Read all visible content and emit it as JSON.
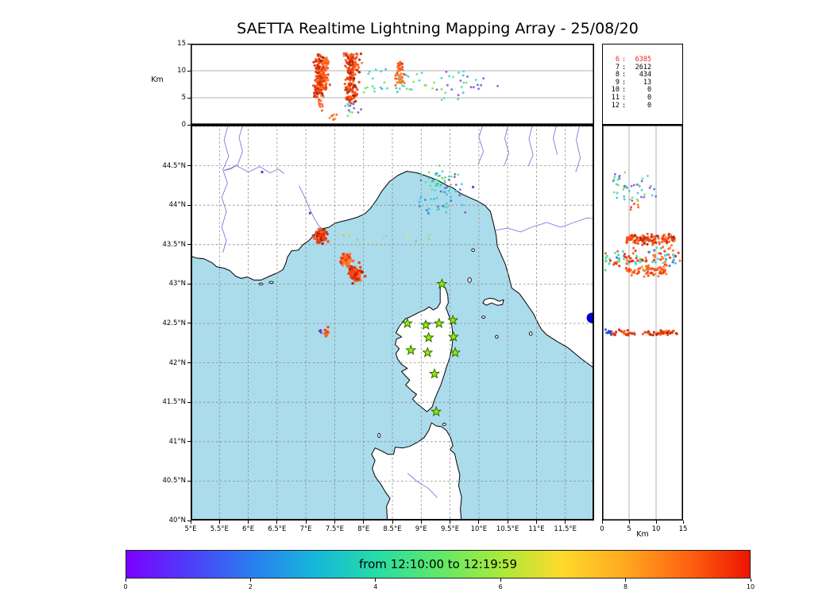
{
  "title": "SAETTA Realtime Lightning Mapping Array - 25/08/20",
  "colorbar": {
    "label": "from 12:10:00 to 12:19:59",
    "tick_labels": [
      "0",
      "2",
      "4",
      "6",
      "8",
      "10"
    ],
    "tick_values": [
      0,
      2,
      4,
      6,
      8,
      10
    ],
    "range": [
      0,
      10
    ],
    "gradient": [
      "#7c00ff",
      "#4f3df9",
      "#2b7df0",
      "#16b5db",
      "#25dca8",
      "#5fe86a",
      "#a8ea3a",
      "#ffd92b",
      "#ffa81f",
      "#ff6312",
      "#ec1500"
    ]
  },
  "axes": {
    "alt_label": "Km",
    "alt_tick_labels": [
      "0",
      "5",
      "10",
      "15"
    ],
    "alt_tick_values": [
      0,
      5,
      10,
      15
    ],
    "alt_range": [
      0,
      15
    ],
    "alt_gridlines": [
      5,
      10
    ],
    "lon_tick_labels": [
      "5°E",
      "5.5°E",
      "6°E",
      "6.5°E",
      "7°E",
      "7.5°E",
      "8°E",
      "8.5°E",
      "9°E",
      "9.5°E",
      "10°E",
      "10.5°E",
      "11°E",
      "11.5°E"
    ],
    "lon_tick_values": [
      5,
      5.5,
      6,
      6.5,
      7,
      7.5,
      8,
      8.5,
      9,
      9.5,
      10,
      10.5,
      11,
      11.5
    ],
    "lon_range": [
      5,
      12
    ],
    "lat_tick_labels": [
      "40°N",
      "40.5°N",
      "41°N",
      "41.5°N",
      "42°N",
      "42.5°N",
      "43°N",
      "43.5°N",
      "44°N",
      "44.5°N"
    ],
    "lat_tick_values": [
      40,
      40.5,
      41,
      41.5,
      42,
      42.5,
      43,
      43.5,
      44,
      44.5
    ],
    "lat_range": [
      40,
      45.02
    ],
    "grid_step": 0.5
  },
  "stats": {
    "rows": [
      {
        "label": "6",
        "value": "6385",
        "color": "#f52222"
      },
      {
        "label": "7",
        "value": "2612",
        "color": "#000000"
      },
      {
        "label": "8",
        "value": "434",
        "color": "#000000"
      },
      {
        "label": "9",
        "value": "13",
        "color": "#000000"
      },
      {
        "label": "10",
        "value": "0",
        "color": "#000000"
      },
      {
        "label": "11",
        "value": "0",
        "color": "#000000"
      },
      {
        "label": "12",
        "value": "0",
        "color": "#000000"
      }
    ]
  },
  "colors": {
    "sea": "#abdcec",
    "land": "#ffffff",
    "river": "#6b5fd6",
    "star_fill": "#8ff000",
    "star_edge": "#336600",
    "grid": "#888888"
  },
  "chart_data": {
    "type": "scatter",
    "title": "SAETTA Realtime Lightning Mapping Array - 25/08/20",
    "time_window": {
      "start": "12:10:00",
      "end": "12:19:59"
    },
    "min_stations_counts": [
      [
        "6",
        6385
      ],
      [
        "7",
        2612
      ],
      [
        "8",
        434
      ],
      [
        "9",
        13
      ],
      [
        "10",
        0
      ],
      [
        "11",
        0
      ],
      [
        "12",
        0
      ]
    ],
    "panels": {
      "top": {
        "x": "longitude_deg_E",
        "y": "altitude_km",
        "xlim": [
          5,
          12
        ],
        "ylim": [
          0,
          15
        ]
      },
      "map": {
        "x": "longitude_deg_E",
        "y": "latitude_deg_N",
        "xlim": [
          5,
          12
        ],
        "ylim": [
          40,
          45.02
        ]
      },
      "right": {
        "x": "altitude_km",
        "y": "latitude_deg_N",
        "xlim": [
          0,
          15
        ],
        "ylim": [
          40,
          45.02
        ]
      }
    },
    "stations_lonlat": [
      [
        9.36,
        43.0
      ],
      [
        8.76,
        42.5
      ],
      [
        9.08,
        42.48
      ],
      [
        9.31,
        42.5
      ],
      [
        9.55,
        42.54
      ],
      [
        9.13,
        42.32
      ],
      [
        9.56,
        42.33
      ],
      [
        8.82,
        42.16
      ],
      [
        9.11,
        42.13
      ],
      [
        9.59,
        42.13
      ],
      [
        9.23,
        41.86
      ],
      [
        9.26,
        41.38
      ]
    ],
    "palettes": {
      "fire": [
        "#ff5a1c",
        "#ff4308",
        "#f23005",
        "#ff7426",
        "#e83a10",
        "#ff6a30",
        "#fb8c2e"
      ],
      "fireCore": [
        "#ff5a1c",
        "#f23005",
        "#d92b04",
        "#b81f00",
        "#ff7426",
        "#e83a10",
        "#a01b00",
        "#ff4308"
      ],
      "cool": [
        "#2fd8c8",
        "#35c9e8",
        "#54e08c",
        "#6fe44f",
        "#40b8e0",
        "#8ee03c",
        "#23c4a8"
      ],
      "coolMix": [
        "#2fd8c8",
        "#35c9e8",
        "#54e08c",
        "#4169e1",
        "#7b50e0",
        "#6fe44f",
        "#9a3be0",
        "#40b8e0"
      ],
      "trail": [
        "#ffd027",
        "#ff9b22",
        "#3fd6d0",
        "#a8e03c",
        "#ff6a30",
        "#ffe24a"
      ],
      "mix2": [
        "#2fd8c8",
        "#ff5a1c",
        "#35c9e8",
        "#f23005",
        "#4169e1",
        "#54e08c",
        "#ff7426",
        "#d92b04"
      ],
      "blue": [
        "#2a52d8",
        "#1f3fd0",
        "#3050e8"
      ],
      "purpleBlue": [
        "#8a2be2",
        "#5b3fd8",
        "#6a2bd0"
      ]
    },
    "clusters": [
      {
        "panel": "top",
        "x": {
          "g": [
            7.23,
            0.045
          ]
        },
        "y": {
          "u": [
            5.0,
            13.0
          ]
        },
        "n": 150,
        "r": 1.6,
        "c": "fireCore"
      },
      {
        "panel": "top",
        "x": {
          "g": [
            7.33,
            0.03
          ]
        },
        "y": {
          "u": [
            6.5,
            12.5
          ]
        },
        "n": 70,
        "r": 1.6,
        "c": "fire"
      },
      {
        "panel": "top",
        "x": {
          "g": [
            7.27,
            0.05
          ]
        },
        "y": {
          "u": [
            2.4,
            5.2
          ]
        },
        "n": 12,
        "r": 1.4,
        "c": "fire"
      },
      {
        "panel": "top",
        "x": {
          "g": [
            7.78,
            0.055
          ]
        },
        "y": {
          "u": [
            4.0,
            13.2
          ]
        },
        "n": 175,
        "r": 1.6,
        "c": "fireCore"
      },
      {
        "panel": "top",
        "x": {
          "g": [
            7.8,
            0.06
          ]
        },
        "y": {
          "u": [
            1.5,
            4.0
          ]
        },
        "n": 14,
        "r": 1.4,
        "c": "coolMix"
      },
      {
        "panel": "top",
        "x": {
          "g": [
            8.63,
            0.035
          ]
        },
        "y": {
          "u": [
            7.3,
            11.6
          ]
        },
        "n": 48,
        "r": 1.6,
        "c": "fire"
      },
      {
        "panel": "top",
        "x": {
          "u": [
            7.95,
            9.25
          ]
        },
        "y": {
          "u": [
            6.0,
            10.5
          ]
        },
        "n": 36,
        "r": 1.4,
        "c": "cool"
      },
      {
        "panel": "top",
        "x": {
          "u": [
            9.25,
            10.35
          ]
        },
        "y": {
          "u": [
            4.5,
            10.0
          ]
        },
        "n": 30,
        "r": 1.4,
        "c": "coolMix"
      },
      {
        "panel": "top",
        "x": {
          "u": [
            7.38,
            7.54
          ]
        },
        "y": {
          "u": [
            0.8,
            2.2
          ]
        },
        "n": 6,
        "r": 1.5,
        "c": "fire"
      },
      {
        "panel": "map",
        "x": {
          "g": [
            7.25,
            0.05
          ]
        },
        "y": {
          "g": [
            43.6,
            0.042
          ]
        },
        "n": 100,
        "r": 1.8,
        "c": "fireCore"
      },
      {
        "panel": "map",
        "x": {
          "u": [
            7.38,
            9.35
          ]
        },
        "y": {
          "g": [
            43.57,
            0.05
          ]
        },
        "n": 20,
        "r": 1.1,
        "c": "trail"
      },
      {
        "panel": "map",
        "x": {
          "g": [
            7.71,
            0.042
          ]
        },
        "y": {
          "g": [
            43.3,
            0.038
          ]
        },
        "n": 60,
        "r": 1.8,
        "c": "fire"
      },
      {
        "panel": "map",
        "x": {
          "g": [
            7.86,
            0.05
          ]
        },
        "y": {
          "g": [
            43.13,
            0.045
          ]
        },
        "n": 85,
        "r": 1.8,
        "c": "fireCore"
      },
      {
        "panel": "map",
        "x": {
          "u": [
            8.95,
            9.78
          ]
        },
        "y": {
          "u": [
            43.88,
            44.42
          ]
        },
        "n": 50,
        "r": 1.4,
        "c": "coolMix"
      },
      {
        "panel": "map",
        "x": {
          "g": [
            9.33,
            0.12
          ]
        },
        "y": {
          "g": [
            44.27,
            0.08
          ]
        },
        "n": 28,
        "r": 1.4,
        "c": "cool"
      },
      {
        "panel": "map",
        "x": {
          "g": [
            7.36,
            0.025
          ]
        },
        "y": {
          "g": [
            42.39,
            0.02
          ]
        },
        "n": 10,
        "r": 1.7,
        "c": "fire"
      },
      {
        "panel": "map",
        "x": {
          "g": [
            7.245,
            0.012
          ]
        },
        "y": {
          "g": [
            42.405,
            0.012
          ]
        },
        "n": 5,
        "r": 1.5,
        "c": "purpleBlue"
      },
      {
        "panel": "right",
        "x": {
          "u": [
            2.0,
            10.0
          ]
        },
        "y": {
          "u": [
            44.05,
            44.42
          ]
        },
        "n": 46,
        "r": 1.4,
        "c": "coolMix"
      },
      {
        "panel": "right",
        "x": {
          "u": [
            5.2,
            7.0
          ]
        },
        "y": {
          "g": [
            43.98,
            0.03
          ]
        },
        "n": 6,
        "r": 1.4,
        "c": "fire"
      },
      {
        "panel": "right",
        "x": {
          "u": [
            4.5,
            13.5
          ]
        },
        "y": {
          "g": [
            43.565,
            0.032
          ]
        },
        "n": 110,
        "r": 1.6,
        "c": "fireCore"
      },
      {
        "panel": "right",
        "x": {
          "u": [
            0.5,
            14.5
          ]
        },
        "y": {
          "g": [
            43.33,
            0.055
          ]
        },
        "n": 100,
        "r": 1.6,
        "c": "mix2"
      },
      {
        "panel": "right",
        "x": {
          "u": [
            4.0,
            12.0
          ]
        },
        "y": {
          "g": [
            43.16,
            0.032
          ]
        },
        "n": 60,
        "r": 1.6,
        "c": "fire"
      },
      {
        "panel": "right",
        "x": {
          "u": [
            1.5,
            14.0
          ]
        },
        "y": {
          "g": [
            42.38,
            0.016
          ]
        },
        "n": 65,
        "r": 1.6,
        "c": "fireCore"
      },
      {
        "panel": "right",
        "x": {
          "u": [
            0.3,
            1.8
          ]
        },
        "y": {
          "g": [
            42.39,
            0.015
          ]
        },
        "n": 9,
        "r": 1.6,
        "c": "blue"
      }
    ],
    "singles_map": [
      {
        "lon": 6.24,
        "lat": 44.42,
        "color": "#8a2be2",
        "r": 1.7
      },
      {
        "lon": 7.07,
        "lat": 43.9,
        "color": "#8a2be2",
        "r": 1.6
      },
      {
        "lon": 9.9,
        "lat": 44.23,
        "color": "#5b3fd8",
        "r": 1.6
      },
      {
        "lon": 11.96,
        "lat": 42.57,
        "color": "#0000cc",
        "r": 6.5
      }
    ]
  }
}
